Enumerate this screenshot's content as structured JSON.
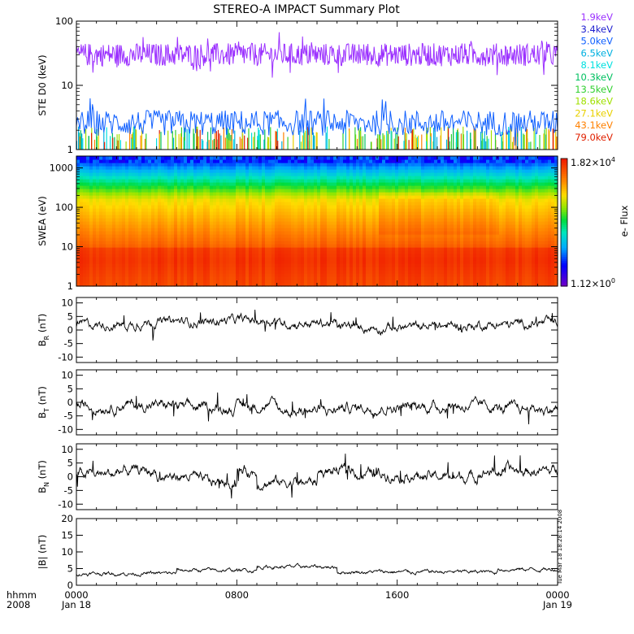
{
  "title": "STEREO-A IMPACT Summary Plot",
  "stamp": "Tue Mar 18 18:28:14 2008",
  "legend": {
    "entries": [
      {
        "label": "1.9keV",
        "color": "#9b30ff"
      },
      {
        "label": "3.4keV",
        "color": "#2020d0"
      },
      {
        "label": "5.0keV",
        "color": "#1060ff"
      },
      {
        "label": "6.5keV",
        "color": "#00b0e0"
      },
      {
        "label": "8.1keV",
        "color": "#00e0e0"
      },
      {
        "label": "10.3keV",
        "color": "#00c060"
      },
      {
        "label": "13.5keV",
        "color": "#30d030"
      },
      {
        "label": "18.6keV",
        "color": "#a0e000"
      },
      {
        "label": "27.1keV",
        "color": "#e8d000"
      },
      {
        "label": "43.1keV",
        "color": "#ff8000"
      },
      {
        "label": "79.0keV",
        "color": "#e02000"
      }
    ]
  },
  "colorbar": {
    "label": "e- Flux",
    "max_label": "1.82×10",
    "max_exp": "4",
    "min_label": "1.12×10",
    "min_exp": "0"
  },
  "xaxis": {
    "row1_left": "hhmm",
    "row2_left": "2008",
    "ticks": [
      {
        "t": 0,
        "time": "0000",
        "date": "Jan 18"
      },
      {
        "t": 8,
        "time": "0800",
        "date": ""
      },
      {
        "t": 16,
        "time": "1600",
        "date": ""
      },
      {
        "t": 24,
        "time": "0000",
        "date": "Jan 19"
      }
    ]
  },
  "chart_data": [
    {
      "type": "line",
      "name": "ste",
      "ylabel": "STE D0 (keV)",
      "yscale": "log",
      "ylim": [
        1,
        100
      ],
      "yticks": [
        {
          "v": 1,
          "label": "1"
        },
        {
          "v": 10,
          "label": "10"
        },
        {
          "v": 100,
          "label": "100"
        }
      ],
      "x_range_hours": [
        0,
        24
      ],
      "series": [
        {
          "color": "#9b30ff",
          "mean": 30,
          "spread": 0.18
        },
        {
          "color": "#1060ff",
          "mean": 2.6,
          "spread": 0.2
        }
      ]
    },
    {
      "type": "heatmap",
      "name": "swea",
      "ylabel": "SWEA (eV)",
      "yscale": "log",
      "ylim": [
        1,
        2000
      ],
      "yticks": [
        {
          "v": 1,
          "label": "1"
        },
        {
          "v": 10,
          "label": "10"
        },
        {
          "v": 100,
          "label": "100"
        },
        {
          "v": 1000,
          "label": "1000"
        }
      ],
      "x_range_hours": [
        0,
        24
      ],
      "zlim": [
        1.12,
        18200
      ]
    },
    {
      "type": "line",
      "name": "br",
      "ylabel": "B",
      "ysub": "R",
      "yunit": " (nT)",
      "ylim": [
        -12,
        12
      ],
      "yticks": [
        {
          "v": 10,
          "label": "10"
        },
        {
          "v": 5,
          "label": "5"
        },
        {
          "v": 0,
          "label": "0"
        },
        {
          "v": -5,
          "label": "-5"
        },
        {
          "v": -10,
          "label": "-10"
        }
      ],
      "x_range_hours": [
        0,
        24
      ],
      "segments": [
        {
          "t0": 0,
          "t1": 3,
          "v": 2
        },
        {
          "t0": 3,
          "t1": 7,
          "v": 3
        },
        {
          "t0": 7,
          "t1": 10,
          "v": 3.5
        },
        {
          "t0": 10,
          "t1": 13,
          "v": 2.5
        },
        {
          "t0": 13,
          "t1": 17,
          "v": 1
        },
        {
          "t0": 17,
          "t1": 20,
          "v": 1.5
        },
        {
          "t0": 20,
          "t1": 22,
          "v": 2
        },
        {
          "t0": 22,
          "t1": 24,
          "v": 2.5
        }
      ]
    },
    {
      "type": "line",
      "name": "bt",
      "ylabel": "B",
      "ysub": "T",
      "yunit": " (nT)",
      "ylim": [
        -12,
        12
      ],
      "yticks": [
        {
          "v": 10,
          "label": "10"
        },
        {
          "v": 5,
          "label": "5"
        },
        {
          "v": 0,
          "label": "0"
        },
        {
          "v": -5,
          "label": "-5"
        },
        {
          "v": -10,
          "label": "-10"
        }
      ],
      "x_range_hours": [
        0,
        24
      ],
      "segments": [
        {
          "t0": 0,
          "t1": 2,
          "v": -1.5
        },
        {
          "t0": 2,
          "t1": 5,
          "v": -1
        },
        {
          "t0": 5,
          "t1": 8,
          "v": -2
        },
        {
          "t0": 8,
          "t1": 10,
          "v": -1
        },
        {
          "t0": 10,
          "t1": 13,
          "v": -3
        },
        {
          "t0": 13,
          "t1": 17,
          "v": -2
        },
        {
          "t0": 17,
          "t1": 21,
          "v": -1.5
        },
        {
          "t0": 21,
          "t1": 24,
          "v": -2.5
        }
      ]
    },
    {
      "type": "line",
      "name": "bn",
      "ylabel": "B",
      "ysub": "N",
      "yunit": " (nT)",
      "ylim": [
        -12,
        12
      ],
      "yticks": [
        {
          "v": 10,
          "label": "10"
        },
        {
          "v": 5,
          "label": "5"
        },
        {
          "v": 0,
          "label": "0"
        },
        {
          "v": -5,
          "label": "-5"
        },
        {
          "v": -10,
          "label": "-10"
        }
      ],
      "x_range_hours": [
        0,
        24
      ],
      "segments": [
        {
          "t0": 0,
          "t1": 2,
          "v": 1
        },
        {
          "t0": 2,
          "t1": 4,
          "v": 2
        },
        {
          "t0": 4,
          "t1": 6,
          "v": 0
        },
        {
          "t0": 6,
          "t1": 8,
          "v": -2
        },
        {
          "t0": 8,
          "t1": 9,
          "v": 2
        },
        {
          "t0": 9,
          "t1": 12,
          "v": -2
        },
        {
          "t0": 12,
          "t1": 14,
          "v": 2
        },
        {
          "t0": 14,
          "t1": 17,
          "v": 1
        },
        {
          "t0": 17,
          "t1": 20,
          "v": 0
        },
        {
          "t0": 20,
          "t1": 24,
          "v": 2
        }
      ]
    },
    {
      "type": "line",
      "name": "bmag",
      "ylabel": "|B| (nT)",
      "ylim": [
        0,
        20
      ],
      "yticks": [
        {
          "v": 20,
          "label": "20"
        },
        {
          "v": 15,
          "label": "15"
        },
        {
          "v": 10,
          "label": "10"
        },
        {
          "v": 5,
          "label": "5"
        },
        {
          "v": 0,
          "label": "0"
        }
      ],
      "x_range_hours": [
        0,
        24
      ],
      "segments": [
        {
          "t0": 0,
          "t1": 5,
          "v": 3.5
        },
        {
          "t0": 5,
          "t1": 9,
          "v": 4.5
        },
        {
          "t0": 9,
          "t1": 13,
          "v": 5.5
        },
        {
          "t0": 13,
          "t1": 17,
          "v": 4
        },
        {
          "t0": 17,
          "t1": 21,
          "v": 4
        },
        {
          "t0": 21,
          "t1": 24,
          "v": 4.8
        }
      ]
    }
  ]
}
